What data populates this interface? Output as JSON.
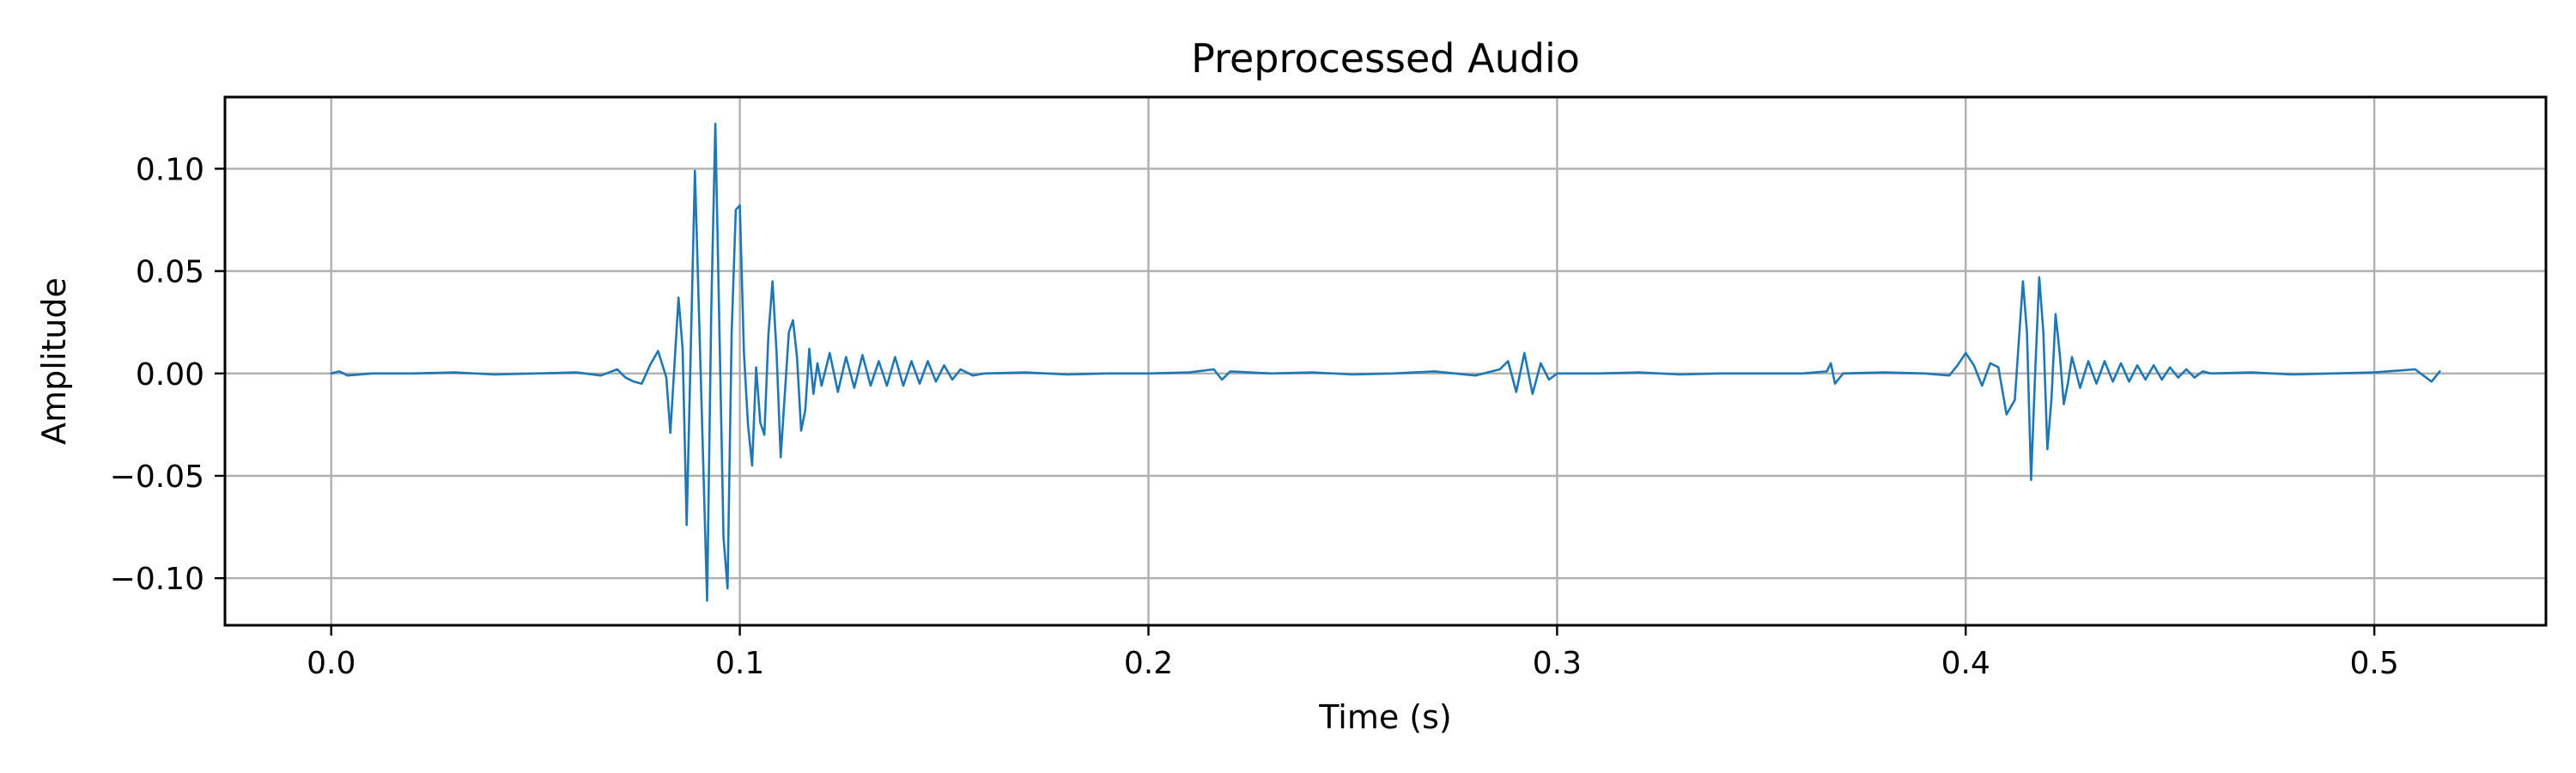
{
  "chart_data": {
    "type": "line",
    "title": "Preprocessed Audio",
    "xlabel": "Time (s)",
    "ylabel": "Amplitude",
    "xlim": [
      -0.026,
      0.542
    ],
    "ylim": [
      -0.123,
      0.135
    ],
    "x_ticks": [
      0.0,
      0.1,
      0.2,
      0.3,
      0.4,
      0.5
    ],
    "x_tick_labels": [
      "0.0",
      "0.1",
      "0.2",
      "0.3",
      "0.4",
      "0.5"
    ],
    "y_ticks": [
      0.1,
      0.05,
      0.0,
      -0.05,
      -0.1
    ],
    "y_tick_labels": [
      "0.10",
      "0.05",
      "0.00",
      "−0.05",
      "−0.10"
    ],
    "grid": true,
    "series": [
      {
        "color": "#1f77b4",
        "x": [
          0.0,
          0.002,
          0.004,
          0.01,
          0.02,
          0.03,
          0.04,
          0.05,
          0.06,
          0.066,
          0.07,
          0.072,
          0.074,
          0.076,
          0.078,
          0.08,
          0.082,
          0.083,
          0.085,
          0.086,
          0.087,
          0.089,
          0.09,
          0.092,
          0.093,
          0.094,
          0.096,
          0.097,
          0.098,
          0.099,
          0.1,
          0.101,
          0.102,
          0.103,
          0.104,
          0.105,
          0.106,
          0.107,
          0.108,
          0.109,
          0.11,
          0.111,
          0.112,
          0.113,
          0.114,
          0.115,
          0.116,
          0.117,
          0.118,
          0.119,
          0.12,
          0.122,
          0.124,
          0.126,
          0.128,
          0.13,
          0.132,
          0.134,
          0.136,
          0.138,
          0.14,
          0.142,
          0.144,
          0.146,
          0.148,
          0.15,
          0.152,
          0.154,
          0.157,
          0.16,
          0.17,
          0.18,
          0.19,
          0.2,
          0.21,
          0.216,
          0.218,
          0.22,
          0.23,
          0.24,
          0.25,
          0.26,
          0.27,
          0.28,
          0.286,
          0.288,
          0.29,
          0.292,
          0.294,
          0.296,
          0.298,
          0.3,
          0.31,
          0.32,
          0.33,
          0.34,
          0.35,
          0.36,
          0.366,
          0.367,
          0.368,
          0.37,
          0.38,
          0.39,
          0.396,
          0.398,
          0.4,
          0.402,
          0.404,
          0.406,
          0.408,
          0.41,
          0.412,
          0.414,
          0.415,
          0.416,
          0.417,
          0.418,
          0.419,
          0.42,
          0.421,
          0.422,
          0.423,
          0.424,
          0.425,
          0.426,
          0.428,
          0.43,
          0.432,
          0.434,
          0.436,
          0.438,
          0.44,
          0.442,
          0.444,
          0.446,
          0.448,
          0.45,
          0.452,
          0.454,
          0.456,
          0.458,
          0.46,
          0.47,
          0.48,
          0.49,
          0.5,
          0.51,
          0.512,
          0.514,
          0.516
        ],
        "y": [
          0.0,
          0.001,
          -0.001,
          0.0,
          0.0,
          0.0005,
          -0.0005,
          0.0,
          0.0005,
          -0.001,
          0.002,
          -0.002,
          -0.004,
          -0.005,
          0.004,
          0.011,
          -0.002,
          -0.029,
          0.037,
          0.012,
          -0.074,
          0.099,
          0.03,
          -0.111,
          0.03,
          0.122,
          -0.08,
          -0.105,
          0.02,
          0.08,
          0.082,
          0.01,
          -0.025,
          -0.045,
          0.003,
          -0.024,
          -0.03,
          0.019,
          0.045,
          0.01,
          -0.041,
          -0.01,
          0.02,
          0.026,
          0.008,
          -0.028,
          -0.018,
          0.012,
          -0.01,
          0.005,
          -0.006,
          0.01,
          -0.009,
          0.008,
          -0.007,
          0.009,
          -0.006,
          0.006,
          -0.006,
          0.008,
          -0.006,
          0.006,
          -0.005,
          0.006,
          -0.004,
          0.004,
          -0.003,
          0.002,
          -0.001,
          0.0,
          0.0005,
          -0.0005,
          0.0,
          0.0,
          0.0005,
          0.002,
          -0.003,
          0.001,
          0.0,
          0.0005,
          -0.0005,
          0.0,
          0.001,
          -0.001,
          0.002,
          0.006,
          -0.009,
          0.01,
          -0.01,
          0.005,
          -0.003,
          0.0,
          0.0,
          0.0005,
          -0.0005,
          0.0,
          0.0,
          0.0,
          0.001,
          0.005,
          -0.005,
          0.0,
          0.0005,
          0.0,
          -0.001,
          0.004,
          0.01,
          0.004,
          -0.006,
          0.005,
          0.003,
          -0.02,
          -0.013,
          0.045,
          0.02,
          -0.052,
          0.0,
          0.047,
          0.02,
          -0.037,
          -0.012,
          0.029,
          0.01,
          -0.015,
          -0.005,
          0.008,
          -0.007,
          0.006,
          -0.005,
          0.006,
          -0.004,
          0.005,
          -0.004,
          0.004,
          -0.003,
          0.004,
          -0.003,
          0.003,
          -0.002,
          0.002,
          -0.002,
          0.001,
          0.0,
          0.0005,
          -0.0005,
          0.0,
          0.0005,
          0.002,
          -0.001,
          -0.004,
          0.001
        ]
      }
    ]
  }
}
